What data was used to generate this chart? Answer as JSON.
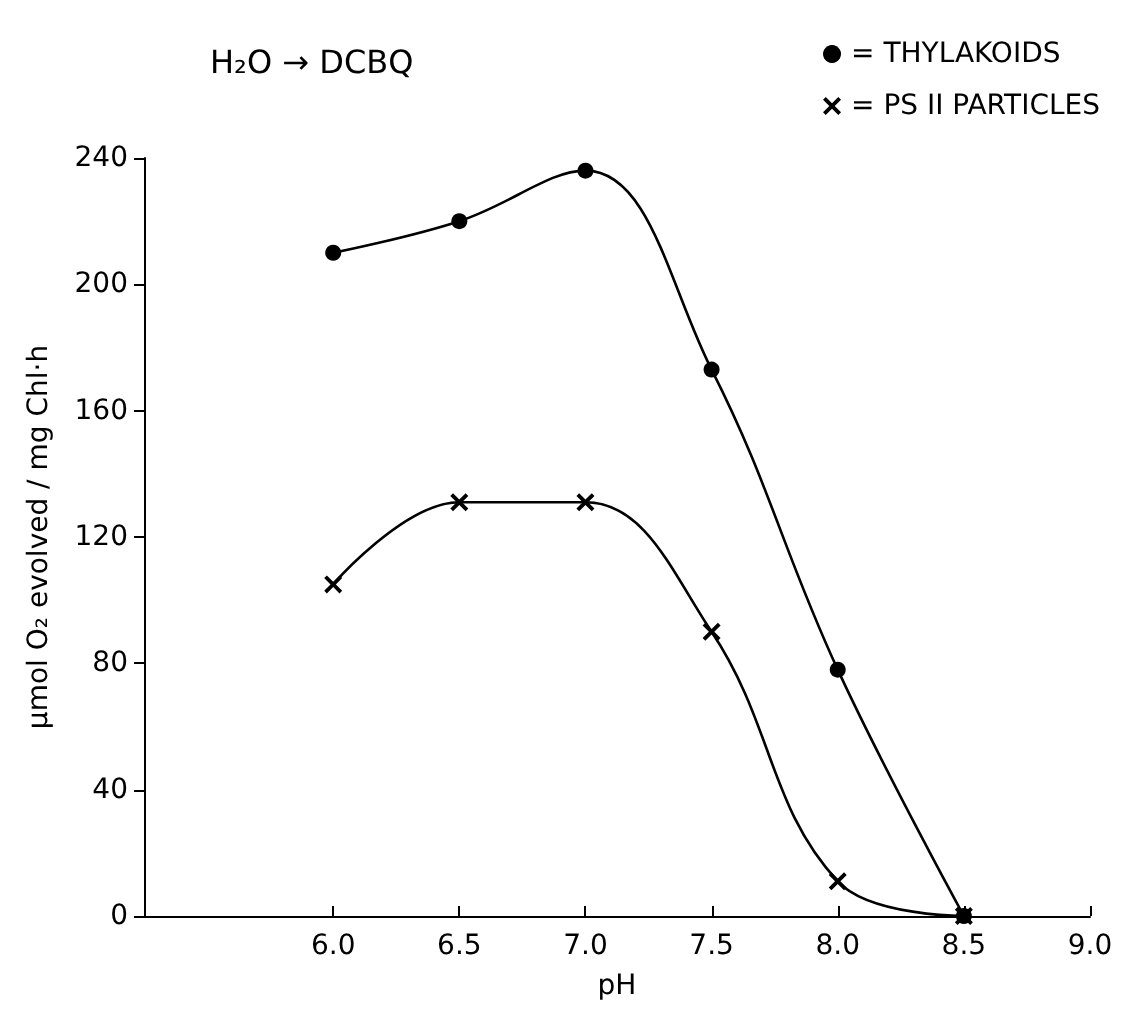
{
  "chart_data": {
    "type": "line",
    "title": "H₂O → DCBQ",
    "xlabel": "pH",
    "ylabel": "μmol O₂ evolved / mg Chl·h",
    "x": [
      6.0,
      6.5,
      7.0,
      7.5,
      8.0,
      8.5
    ],
    "series": [
      {
        "name": "= THYLAKOIDS",
        "color": "#000000",
        "marker": "circle",
        "values": [
          210,
          220,
          236,
          173,
          78,
          0
        ]
      },
      {
        "name": "= PS II PARTICLES",
        "color": "#000000",
        "marker": "cross",
        "values": [
          105,
          131,
          131,
          90,
          11,
          0
        ]
      }
    ],
    "xlim": [
      5.25,
      9.0
    ],
    "xticks": [
      {
        "value": 6,
        "label": "6.0"
      },
      {
        "value": 6.5,
        "label": "6.5"
      },
      {
        "value": 7,
        "label": "7.0"
      },
      {
        "value": 7.5,
        "label": "7.5"
      },
      {
        "value": 8,
        "label": "8.0"
      },
      {
        "value": 8.5,
        "label": "8.5"
      },
      {
        "value": 9,
        "label": "9.0"
      }
    ],
    "ylim": [
      0,
      240
    ],
    "yticks": [
      0,
      40,
      80,
      120,
      160,
      200,
      240
    ],
    "grid": false,
    "legend": "top right",
    "line_style": "solid"
  }
}
